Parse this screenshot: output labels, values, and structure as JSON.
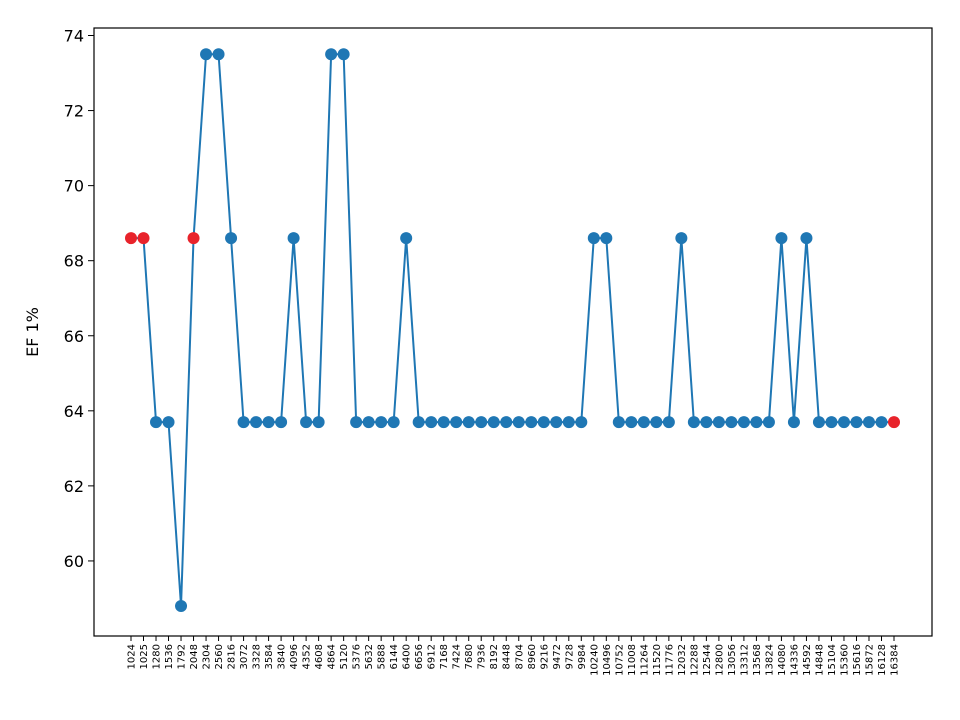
{
  "chart_data": {
    "type": "line",
    "title": "",
    "xlabel": "",
    "ylabel": "EF 1%",
    "ylim": [
      58.0,
      74.2
    ],
    "yticks": [
      60,
      62,
      64,
      66,
      68,
      70,
      72,
      74
    ],
    "grid": false,
    "x": [
      "1024",
      "1025",
      "1280",
      "1536",
      "1792",
      "2048",
      "2304",
      "2560",
      "2816",
      "3072",
      "3328",
      "3584",
      "3840",
      "4096",
      "4352",
      "4608",
      "4864",
      "5120",
      "5376",
      "5632",
      "5888",
      "6144",
      "6400",
      "6656",
      "6912",
      "7168",
      "7424",
      "7680",
      "7936",
      "8192",
      "8448",
      "8704",
      "8960",
      "9216",
      "9472",
      "9728",
      "9984",
      "10240",
      "10496",
      "10752",
      "11008",
      "11264",
      "11520",
      "11776",
      "12032",
      "12288",
      "12544",
      "12800",
      "13056",
      "13312",
      "13568",
      "13824",
      "14080",
      "14336",
      "14592",
      "14848",
      "15104",
      "15360",
      "15616",
      "15872",
      "16128",
      "16384"
    ],
    "series": [
      {
        "color": "#1f77b4",
        "values": [
          68.6,
          68.6,
          63.7,
          63.7,
          58.8,
          68.6,
          73.5,
          73.5,
          68.6,
          63.7,
          63.7,
          63.7,
          63.7,
          68.6,
          63.7,
          63.7,
          73.5,
          73.5,
          63.7,
          63.7,
          63.7,
          63.7,
          68.6,
          63.7,
          63.7,
          63.7,
          63.7,
          63.7,
          63.7,
          63.7,
          63.7,
          63.7,
          63.7,
          63.7,
          63.7,
          63.7,
          63.7,
          68.6,
          68.6,
          63.7,
          63.7,
          63.7,
          63.7,
          63.7,
          68.6,
          63.7,
          63.7,
          63.7,
          63.7,
          63.7,
          63.7,
          63.7,
          68.6,
          63.7,
          68.6,
          63.7,
          63.7,
          63.7,
          63.7,
          63.7,
          63.7,
          63.7
        ]
      }
    ],
    "highlight_points": {
      "color": "#e8232b",
      "indices": [
        0,
        1,
        5,
        61
      ]
    }
  }
}
